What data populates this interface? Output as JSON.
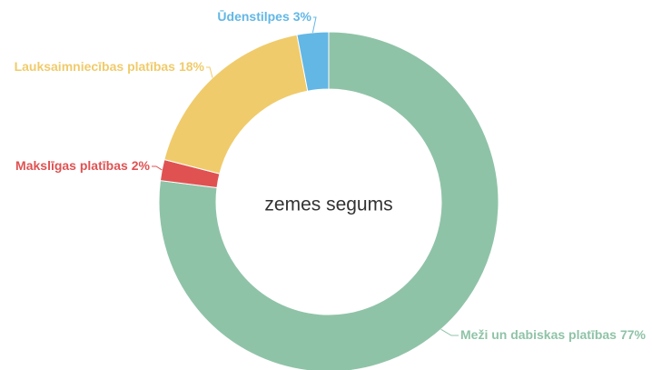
{
  "chart_data": {
    "type": "donut",
    "title": "zemes segums",
    "categories": [
      "Meži un dabiskas platības",
      "Makslīgas platības",
      "Lauksaimniecības platības",
      "Ūdenstilpes"
    ],
    "values": [
      77,
      2,
      18,
      3
    ],
    "value_labels": [
      "77%",
      "2%",
      "18%",
      "3%"
    ],
    "colors": [
      "#8fc3a7",
      "#e05252",
      "#f0cb6b",
      "#62b7e5"
    ]
  }
}
